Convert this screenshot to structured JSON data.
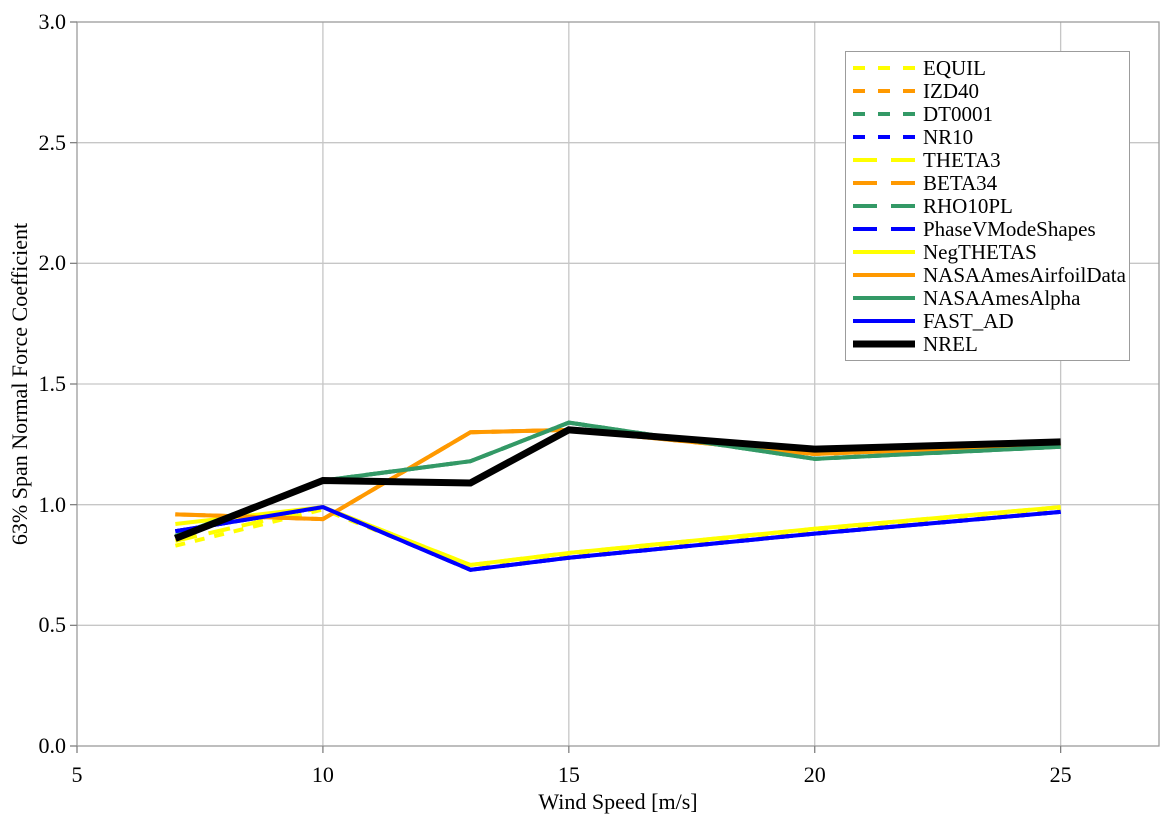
{
  "chart_data": {
    "type": "line",
    "title": "",
    "xlabel": "Wind Speed [m/s]",
    "ylabel": "63% Span Normal Force Coefficient",
    "x": [
      7,
      10,
      13,
      15,
      20,
      25
    ],
    "xlim": [
      5,
      27
    ],
    "ylim": [
      0.0,
      3.0
    ],
    "x_ticks": [
      5,
      10,
      15,
      20,
      25
    ],
    "y_ticks": [
      "0.0",
      "0.5",
      "1.0",
      "1.5",
      "2.0",
      "2.5",
      "3.0"
    ],
    "grid": true,
    "legend_position": "top-right-inside",
    "series": [
      {
        "name": "EQUIL",
        "color": "#FFFF00",
        "style": "dash-short",
        "width": 4,
        "values": [
          0.83,
          0.98,
          0.74,
          0.79,
          0.89,
          0.98
        ]
      },
      {
        "name": "IZD40",
        "color": "#FF9900",
        "style": "dash-short",
        "width": 4,
        "values": [
          0.96,
          0.94,
          1.3,
          1.31,
          1.21,
          1.25
        ]
      },
      {
        "name": "DT0001",
        "color": "#339966",
        "style": "dash-short",
        "width": 4,
        "values": [
          0.87,
          1.1,
          1.18,
          1.34,
          1.19,
          1.24
        ]
      },
      {
        "name": "NR10",
        "color": "#0000FF",
        "style": "dash-short",
        "width": 4,
        "values": [
          0.89,
          0.99,
          0.73,
          0.78,
          0.88,
          0.97
        ]
      },
      {
        "name": "THETA3",
        "color": "#FFFF00",
        "style": "dash-long",
        "width": 4,
        "values": [
          0.85,
          0.99,
          0.75,
          0.8,
          0.9,
          0.99
        ]
      },
      {
        "name": "BETA34",
        "color": "#FF9900",
        "style": "dash-long",
        "width": 4,
        "values": [
          0.96,
          0.94,
          1.3,
          1.31,
          1.21,
          1.25
        ]
      },
      {
        "name": "RHO10PL",
        "color": "#339966",
        "style": "dash-long",
        "width": 4,
        "values": [
          0.87,
          1.1,
          1.18,
          1.34,
          1.19,
          1.24
        ]
      },
      {
        "name": "PhaseVModeShapes",
        "color": "#0000FF",
        "style": "dash-long",
        "width": 4,
        "values": [
          0.89,
          0.99,
          0.73,
          0.78,
          0.88,
          0.97
        ]
      },
      {
        "name": "NegTHETAS",
        "color": "#FFFF00",
        "style": "solid",
        "width": 4,
        "values": [
          0.92,
          0.99,
          0.75,
          0.8,
          0.9,
          0.99
        ]
      },
      {
        "name": "NASAAmesAirfoilData",
        "color": "#FF9900",
        "style": "solid",
        "width": 4,
        "values": [
          0.96,
          0.94,
          1.3,
          1.31,
          1.21,
          1.25
        ]
      },
      {
        "name": "NASAAmesAlpha",
        "color": "#339966",
        "style": "solid",
        "width": 4,
        "values": [
          0.87,
          1.1,
          1.18,
          1.34,
          1.19,
          1.24
        ]
      },
      {
        "name": "FAST_AD",
        "color": "#0000FF",
        "style": "solid",
        "width": 4,
        "values": [
          0.89,
          0.99,
          0.73,
          0.78,
          0.88,
          0.97
        ]
      },
      {
        "name": "NREL",
        "color": "#000000",
        "style": "solid",
        "width": 7,
        "values": [
          0.86,
          1.1,
          1.09,
          1.31,
          1.23,
          1.26
        ]
      }
    ],
    "colors": {
      "background": "#ffffff",
      "gridline": "#c6c6c6",
      "plot_border": "#9c9c9c",
      "tick": "#808080",
      "text": "#000000"
    }
  }
}
